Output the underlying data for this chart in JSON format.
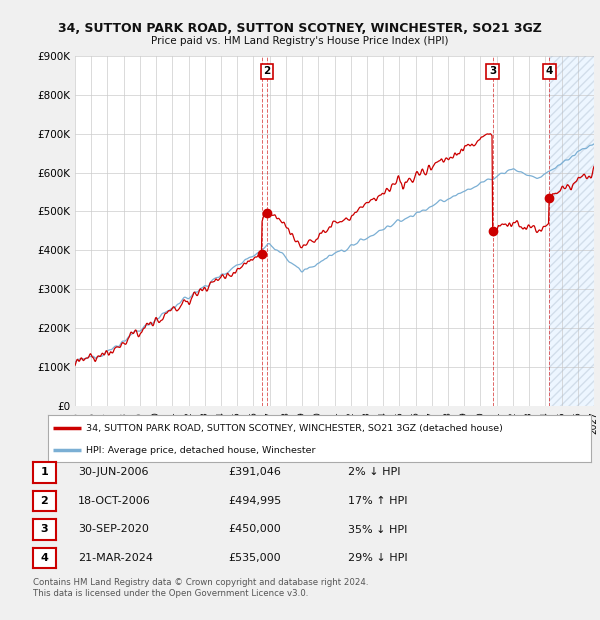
{
  "title": "34, SUTTON PARK ROAD, SUTTON SCOTNEY, WINCHESTER, SO21 3GZ",
  "subtitle": "Price paid vs. HM Land Registry's House Price Index (HPI)",
  "ylim": [
    0,
    900000
  ],
  "yticks": [
    0,
    100000,
    200000,
    300000,
    400000,
    500000,
    600000,
    700000,
    800000,
    900000
  ],
  "ytick_labels": [
    "£0",
    "£100K",
    "£200K",
    "£300K",
    "£400K",
    "£500K",
    "£600K",
    "£700K",
    "£800K",
    "£900K"
  ],
  "line1_color": "#cc0000",
  "line2_color": "#7bafd4",
  "fill_color": "#ddeeff",
  "legend1": "34, SUTTON PARK ROAD, SUTTON SCOTNEY, WINCHESTER, SO21 3GZ (detached house)",
  "legend2": "HPI: Average price, detached house, Winchester",
  "transactions": [
    {
      "num": 1,
      "date": "30-JUN-2006",
      "price": "£391,046",
      "hpi": "2% ↓ HPI",
      "year": 2006.5,
      "value": 391046,
      "show_on_chart": false
    },
    {
      "num": 2,
      "date": "18-OCT-2006",
      "price": "£494,995",
      "hpi": "17% ↑ HPI",
      "year": 2006.83,
      "value": 494995,
      "show_on_chart": true
    },
    {
      "num": 3,
      "date": "30-SEP-2020",
      "price": "£450,000",
      "hpi": "35% ↓ HPI",
      "year": 2020.75,
      "value": 450000,
      "show_on_chart": true
    },
    {
      "num": 4,
      "date": "21-MAR-2024",
      "price": "£535,000",
      "hpi": "29% ↓ HPI",
      "year": 2024.25,
      "value": 535000,
      "show_on_chart": true
    }
  ],
  "footnote1": "Contains HM Land Registry data © Crown copyright and database right 2024.",
  "footnote2": "This data is licensed under the Open Government Licence v3.0.",
  "bg_color": "#f0f0f0",
  "plot_bg_color": "#ffffff",
  "future_start": 2024.25,
  "xmin": 1995,
  "xmax": 2027
}
